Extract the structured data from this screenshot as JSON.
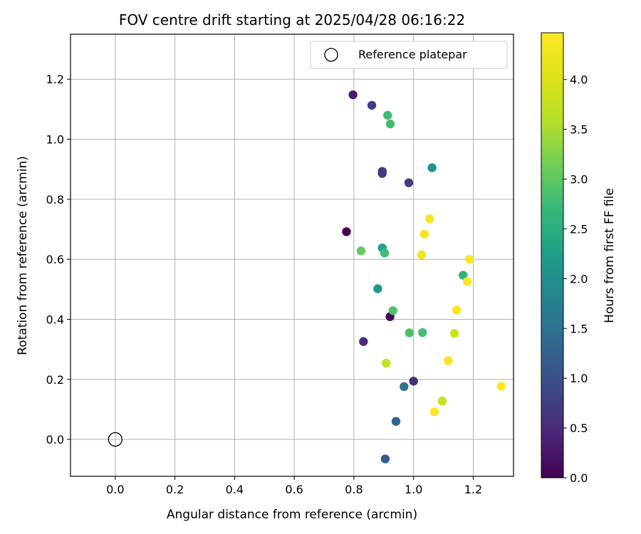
{
  "chart_data": {
    "type": "scatter",
    "title": "FOV centre drift starting at 2025/04/28 06:16:22",
    "xlabel": "Angular distance from reference (arcmin)",
    "ylabel": "Rotation from reference (arcmin)",
    "xlim": [
      -0.15,
      1.335
    ],
    "ylim": [
      -0.123,
      1.35
    ],
    "xticks": [
      0.0,
      0.2,
      0.4,
      0.6,
      0.8,
      1.0,
      1.2
    ],
    "xtick_labels": [
      "0.0",
      "0.2",
      "0.4",
      "0.6",
      "0.8",
      "1.0",
      "1.2"
    ],
    "yticks": [
      0.0,
      0.2,
      0.4,
      0.6,
      0.8,
      1.0,
      1.2
    ],
    "ytick_labels": [
      "0.0",
      "0.2",
      "0.4",
      "0.6",
      "0.8",
      "1.0",
      "1.2"
    ],
    "grid": true,
    "legend": {
      "placement": "top-right",
      "entries": [
        "Reference platepar"
      ]
    },
    "reference_point": {
      "x": 0.0,
      "y": 0.0,
      "marker": "open-circle"
    },
    "colorbar": {
      "label": "Hours from first FF file",
      "colormap": "viridis",
      "range": [
        0.0,
        4.47
      ],
      "ticks": [
        0.0,
        0.5,
        1.0,
        1.5,
        2.0,
        2.5,
        3.0,
        3.5,
        4.0
      ],
      "tick_labels": [
        "0.0",
        "0.5",
        "1.0",
        "1.5",
        "2.0",
        "2.5",
        "3.0",
        "3.5",
        "4.0"
      ]
    },
    "points": [
      {
        "x": 0.775,
        "y": 0.692,
        "hours": 0.0
      },
      {
        "x": 0.921,
        "y": 0.409,
        "hours": 0.05
      },
      {
        "x": 0.797,
        "y": 1.148,
        "hours": 0.3
      },
      {
        "x": 0.832,
        "y": 0.326,
        "hours": 0.5
      },
      {
        "x": 1.0,
        "y": 0.194,
        "hours": 0.55
      },
      {
        "x": 0.86,
        "y": 1.113,
        "hours": 0.75
      },
      {
        "x": 0.895,
        "y": 0.893,
        "hours": 0.65
      },
      {
        "x": 0.895,
        "y": 0.886,
        "hours": 0.72
      },
      {
        "x": 0.984,
        "y": 0.855,
        "hours": 0.7
      },
      {
        "x": 0.941,
        "y": 0.06,
        "hours": 1.25
      },
      {
        "x": 0.905,
        "y": -0.065,
        "hours": 1.15
      },
      {
        "x": 0.968,
        "y": 0.176,
        "hours": 1.55
      },
      {
        "x": 1.062,
        "y": 0.905,
        "hours": 2.1
      },
      {
        "x": 0.88,
        "y": 0.502,
        "hours": 2.15
      },
      {
        "x": 0.895,
        "y": 0.638,
        "hours": 2.3
      },
      {
        "x": 1.166,
        "y": 0.547,
        "hours": 2.6
      },
      {
        "x": 0.913,
        "y": 1.08,
        "hours": 2.75
      },
      {
        "x": 0.922,
        "y": 1.051,
        "hours": 2.8
      },
      {
        "x": 0.903,
        "y": 0.621,
        "hours": 2.8
      },
      {
        "x": 0.931,
        "y": 0.429,
        "hours": 2.9
      },
      {
        "x": 0.986,
        "y": 0.355,
        "hours": 2.85
      },
      {
        "x": 1.03,
        "y": 0.356,
        "hours": 2.8
      },
      {
        "x": 0.824,
        "y": 0.628,
        "hours": 3.05
      },
      {
        "x": 0.908,
        "y": 0.254,
        "hours": 3.75
      },
      {
        "x": 1.137,
        "y": 0.353,
        "hours": 3.85
      },
      {
        "x": 1.096,
        "y": 0.128,
        "hours": 3.8
      },
      {
        "x": 1.054,
        "y": 0.735,
        "hours": 4.35
      },
      {
        "x": 1.036,
        "y": 0.684,
        "hours": 4.3
      },
      {
        "x": 1.027,
        "y": 0.615,
        "hours": 4.3
      },
      {
        "x": 1.187,
        "y": 0.6,
        "hours": 4.4
      },
      {
        "x": 1.18,
        "y": 0.526,
        "hours": 4.4
      },
      {
        "x": 1.144,
        "y": 0.431,
        "hours": 4.35
      },
      {
        "x": 1.116,
        "y": 0.262,
        "hours": 4.4
      },
      {
        "x": 1.294,
        "y": 0.177,
        "hours": 4.45
      },
      {
        "x": 1.07,
        "y": 0.092,
        "hours": 4.45
      }
    ]
  }
}
